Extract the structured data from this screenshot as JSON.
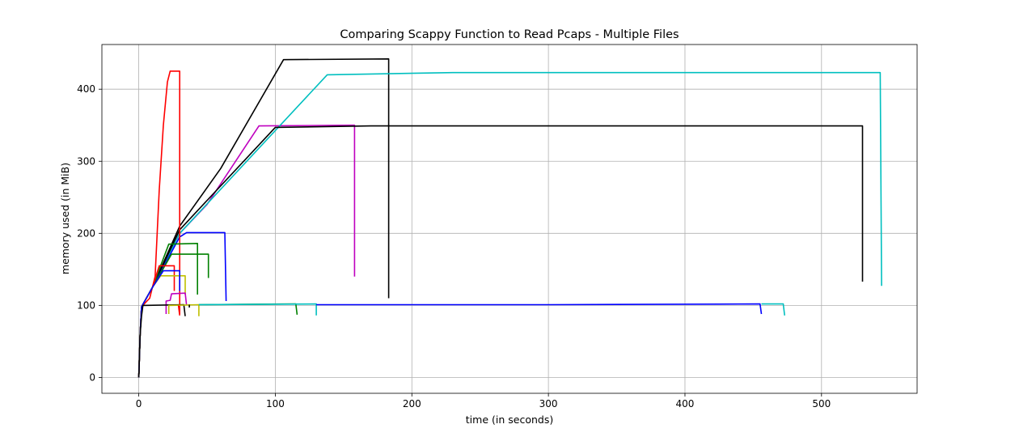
{
  "chart_data": {
    "type": "line",
    "title": "Comparing Scappy Function to Read Pcaps - Multiple Files",
    "xlabel": "time (in seconds)",
    "ylabel": "memory used (in MiB)",
    "xlim": [
      -27,
      570
    ],
    "ylim": [
      -22,
      462
    ],
    "xticks": [
      0,
      100,
      200,
      300,
      400,
      500
    ],
    "yticks": [
      0,
      100,
      200,
      300,
      400
    ],
    "grid": true,
    "series": [
      {
        "color": "#bf00bf",
        "points": [
          [
            0,
            0
          ],
          [
            1,
            60
          ],
          [
            2,
            98
          ],
          [
            10,
            125
          ],
          [
            30,
            200
          ],
          [
            50,
            240
          ],
          [
            88,
            349
          ],
          [
            158,
            350
          ],
          [
            158,
            140
          ]
        ]
      },
      {
        "color": "#000000",
        "points": [
          [
            0,
            0
          ],
          [
            1,
            60
          ],
          [
            2,
            98
          ],
          [
            10,
            125
          ],
          [
            30,
            210
          ],
          [
            60,
            290
          ],
          [
            106,
            441
          ],
          [
            183,
            442
          ],
          [
            183,
            110
          ]
        ]
      },
      {
        "color": "#00bfbf",
        "points": [
          [
            0,
            0
          ],
          [
            1,
            60
          ],
          [
            2,
            98
          ],
          [
            10,
            125
          ],
          [
            30,
            200
          ],
          [
            138,
            420
          ],
          [
            230,
            423
          ],
          [
            543,
            423
          ],
          [
            544,
            127
          ]
        ]
      },
      {
        "color": "#000000",
        "points": [
          [
            0,
            0
          ],
          [
            1,
            60
          ],
          [
            2,
            98
          ],
          [
            10,
            125
          ],
          [
            30,
            205
          ],
          [
            100,
            347
          ],
          [
            170,
            349
          ],
          [
            530,
            349
          ],
          [
            530,
            133
          ]
        ]
      },
      {
        "color": "#0000ff",
        "points": [
          [
            0,
            0
          ],
          [
            1,
            60
          ],
          [
            2,
            98
          ],
          [
            10,
            125
          ],
          [
            30,
            195
          ],
          [
            35,
            201
          ],
          [
            63,
            201
          ],
          [
            64,
            106
          ]
        ]
      },
      {
        "color": "#ff0000",
        "points": [
          [
            0,
            0
          ],
          [
            1,
            60
          ],
          [
            2,
            98
          ],
          [
            8,
            110
          ],
          [
            12,
            140
          ],
          [
            15,
            260
          ],
          [
            18,
            350
          ],
          [
            21,
            410
          ],
          [
            23,
            425
          ],
          [
            30,
            425
          ],
          [
            30,
            88
          ]
        ]
      },
      {
        "color": "#008000",
        "points": [
          [
            0,
            0
          ],
          [
            1,
            60
          ],
          [
            2,
            98
          ],
          [
            10,
            125
          ],
          [
            22,
            185
          ],
          [
            43,
            186
          ],
          [
            43,
            115
          ]
        ]
      },
      {
        "color": "#008000",
        "points": [
          [
            0,
            0
          ],
          [
            1,
            60
          ],
          [
            2,
            98
          ],
          [
            10,
            125
          ],
          [
            24,
            171
          ],
          [
            51,
            171
          ],
          [
            51,
            138
          ]
        ]
      },
      {
        "color": "#ff0000",
        "points": [
          [
            0,
            0
          ],
          [
            1,
            60
          ],
          [
            2,
            98
          ],
          [
            10,
            125
          ],
          [
            15,
            155
          ],
          [
            26,
            155
          ],
          [
            26,
            120
          ]
        ]
      },
      {
        "color": "#bfbf00",
        "points": [
          [
            0,
            0
          ],
          [
            1,
            60
          ],
          [
            2,
            98
          ],
          [
            10,
            125
          ],
          [
            16,
            141
          ],
          [
            34,
            141
          ],
          [
            34,
            115
          ]
        ]
      },
      {
        "color": "#0000ff",
        "points": [
          [
            0,
            0
          ],
          [
            1,
            60
          ],
          [
            2,
            98
          ],
          [
            10,
            125
          ],
          [
            18,
            148
          ],
          [
            30,
            148
          ],
          [
            30,
            120
          ]
        ]
      },
      {
        "color": "#bf00bf",
        "points": [
          [
            20,
            88
          ],
          [
            20,
            106
          ],
          [
            23,
            107
          ],
          [
            24,
            116
          ],
          [
            34,
            117
          ],
          [
            35,
            100
          ]
        ]
      },
      {
        "color": "#000000",
        "points": [
          [
            0,
            0
          ],
          [
            1,
            60
          ],
          [
            2,
            85
          ],
          [
            3,
            100
          ],
          [
            33,
            101
          ],
          [
            34,
            85
          ]
        ]
      },
      {
        "color": "#bfbf00",
        "points": [
          [
            22,
            88
          ],
          [
            22,
            100
          ],
          [
            44,
            101
          ],
          [
            44,
            85
          ]
        ]
      },
      {
        "color": "#008000",
        "points": [
          [
            44,
            101
          ],
          [
            115,
            102
          ],
          [
            116,
            87
          ]
        ]
      },
      {
        "color": "#00bfbf",
        "points": [
          [
            44,
            101
          ],
          [
            130,
            102
          ],
          [
            130,
            86
          ]
        ]
      },
      {
        "color": "#0000ff",
        "points": [
          [
            130,
            101
          ],
          [
            300,
            101
          ],
          [
            455,
            102
          ],
          [
            456,
            88
          ]
        ]
      },
      {
        "color": "#00bfbf",
        "points": [
          [
            456,
            102
          ],
          [
            472,
            102
          ],
          [
            473,
            86
          ]
        ]
      },
      {
        "color": "#ff0000",
        "points": [
          [
            29,
            100
          ],
          [
            30,
            86
          ]
        ]
      },
      {
        "color": "#000000",
        "points": [
          [
            37,
            97
          ],
          [
            37,
            101
          ]
        ]
      }
    ]
  }
}
